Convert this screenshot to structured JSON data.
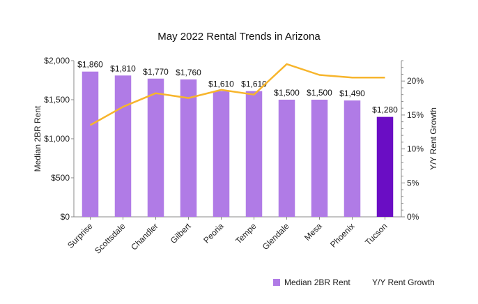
{
  "chart_data": {
    "type": "bar",
    "title": "May 2022 Rental Trends in Arizona",
    "ylabel": "Median 2BR Rent",
    "y2label": "Y/Y Rent Growth",
    "categories": [
      "Surprise",
      "Scottsdale",
      "Chandler",
      "Gilbert",
      "Peoria",
      "Tempe",
      "Glendale",
      "Mesa",
      "Phoenix",
      "Tucson"
    ],
    "ylim": [
      0,
      2000
    ],
    "yticks": [
      "$0",
      "$500",
      "$1,000",
      "$1,500",
      "$2,000"
    ],
    "y2lim": [
      0,
      0.23
    ],
    "y2ticks": [
      "0%",
      "5%",
      "10%",
      "15%",
      "20%"
    ],
    "series": [
      {
        "name": "Median 2BR Rent",
        "kind": "bar",
        "color": "#b07be6",
        "highlight_color": "#6a0dc4",
        "highlight_category": "Tucson",
        "values": [
          1860,
          1810,
          1770,
          1760,
          1610,
          1610,
          1500,
          1500,
          1490,
          1280
        ],
        "data_labels": [
          "$1,860",
          "$1,810",
          "$1,770",
          "$1,760",
          "$1,610",
          "$1,610",
          "$1,500",
          "$1,500",
          "$1,490",
          "$1,280"
        ]
      },
      {
        "name": "Y/Y Rent Growth",
        "kind": "line",
        "axis": "right",
        "color": "#f7b52c",
        "values": [
          0.135,
          0.162,
          0.182,
          0.175,
          0.187,
          0.18,
          0.225,
          0.209,
          0.205,
          0.205
        ]
      }
    ],
    "legend": "bottom-right",
    "grid": false
  }
}
